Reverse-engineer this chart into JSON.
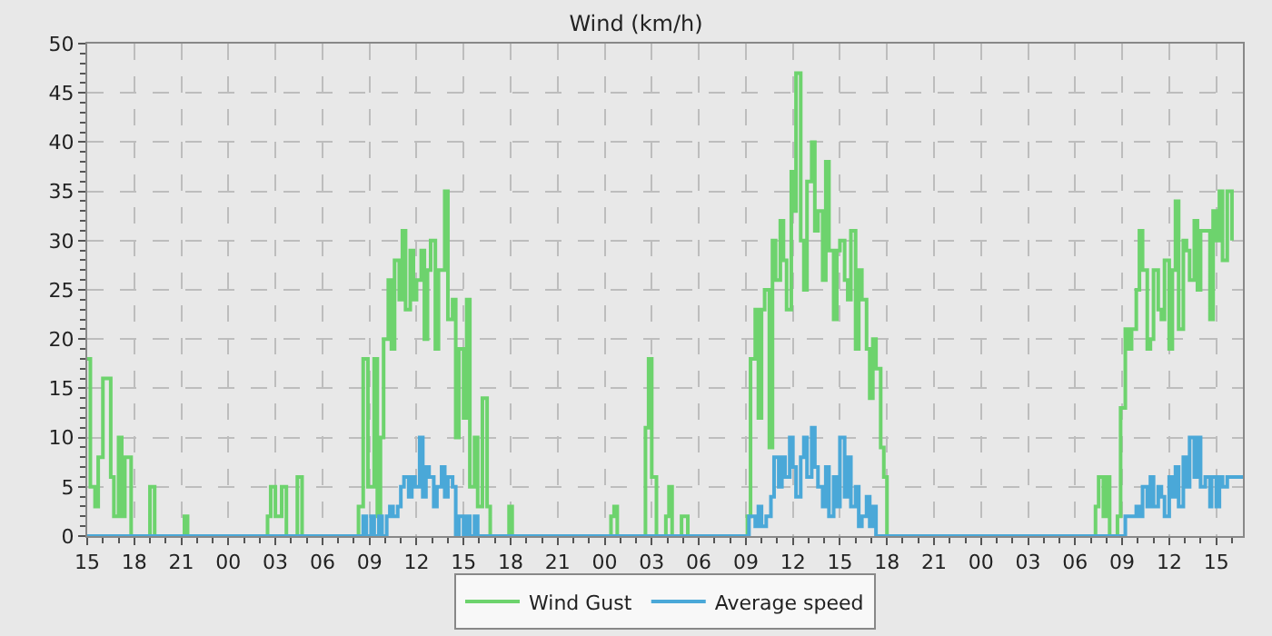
{
  "chart_data": {
    "type": "step",
    "title": "Wind (km/h)",
    "xlim": [
      "2000-01-01T15:00",
      "2000-01-04T16:42"
    ],
    "xticks": [
      {
        "value": "2000-01-01T15:00",
        "label": "15"
      },
      {
        "value": "2000-01-01T18:00",
        "label": "18"
      },
      {
        "value": "2000-01-01T21:00",
        "label": "21"
      },
      {
        "value": "2000-01-02T00:00",
        "label": "00"
      },
      {
        "value": "2000-01-02T03:00",
        "label": "03"
      },
      {
        "value": "2000-01-02T06:00",
        "label": "06"
      },
      {
        "value": "2000-01-02T09:00",
        "label": "09"
      },
      {
        "value": "2000-01-02T12:00",
        "label": "12"
      },
      {
        "value": "2000-01-02T15:00",
        "label": "15"
      },
      {
        "value": "2000-01-02T18:00",
        "label": "18"
      },
      {
        "value": "2000-01-02T21:00",
        "label": "21"
      },
      {
        "value": "2000-01-03T00:00",
        "label": "00"
      },
      {
        "value": "2000-01-03T03:00",
        "label": "03"
      },
      {
        "value": "2000-01-03T06:00",
        "label": "06"
      },
      {
        "value": "2000-01-03T09:00",
        "label": "09"
      },
      {
        "value": "2000-01-03T12:00",
        "label": "12"
      },
      {
        "value": "2000-01-03T15:00",
        "label": "15"
      },
      {
        "value": "2000-01-03T18:00",
        "label": "18"
      },
      {
        "value": "2000-01-03T21:00",
        "label": "21"
      },
      {
        "value": "2000-01-04T00:00",
        "label": "00"
      },
      {
        "value": "2000-01-04T03:00",
        "label": "03"
      },
      {
        "value": "2000-01-04T06:00",
        "label": "06"
      },
      {
        "value": "2000-01-04T09:00",
        "label": "09"
      },
      {
        "value": "2000-01-04T12:00",
        "label": "12"
      },
      {
        "value": "2000-01-04T15:00",
        "label": "15"
      }
    ],
    "ylim": [
      0,
      50
    ],
    "yticks": [
      0,
      5,
      10,
      15,
      20,
      25,
      30,
      35,
      40,
      45,
      50
    ],
    "grid": true,
    "legend": "bottom",
    "line_style": "solid",
    "series": [
      {
        "name": "Wind Gust",
        "color": "#6dd36d",
        "x": [
          "2000-01-01T15:00",
          "2000-01-01T15:12",
          "2000-01-01T15:30",
          "2000-01-01T15:42",
          "2000-01-01T16:00",
          "2000-01-01T16:30",
          "2000-01-01T16:42",
          "2000-01-01T17:00",
          "2000-01-01T17:12",
          "2000-01-01T17:24",
          "2000-01-01T17:48",
          "2000-01-01T19:00",
          "2000-01-01T19:18",
          "2000-01-01T21:12",
          "2000-01-01T21:24",
          "2000-01-02T02:30",
          "2000-01-02T02:42",
          "2000-01-02T03:00",
          "2000-01-02T03:24",
          "2000-01-02T03:42",
          "2000-01-02T04:24",
          "2000-01-02T04:42",
          "2000-01-02T08:18",
          "2000-01-02T08:36",
          "2000-01-02T08:54",
          "2000-01-02T09:18",
          "2000-01-02T09:30",
          "2000-01-02T09:42",
          "2000-01-02T09:54",
          "2000-01-02T10:12",
          "2000-01-02T10:24",
          "2000-01-02T10:36",
          "2000-01-02T10:54",
          "2000-01-02T11:06",
          "2000-01-02T11:18",
          "2000-01-02T11:36",
          "2000-01-02T11:48",
          "2000-01-02T12:00",
          "2000-01-02T12:18",
          "2000-01-02T12:30",
          "2000-01-02T12:42",
          "2000-01-02T12:54",
          "2000-01-02T13:12",
          "2000-01-02T13:24",
          "2000-01-02T13:48",
          "2000-01-02T14:00",
          "2000-01-02T14:18",
          "2000-01-02T14:30",
          "2000-01-02T14:42",
          "2000-01-02T15:00",
          "2000-01-02T15:12",
          "2000-01-02T15:24",
          "2000-01-02T15:42",
          "2000-01-02T15:54",
          "2000-01-02T16:12",
          "2000-01-02T16:30",
          "2000-01-02T16:42",
          "2000-01-02T17:54",
          "2000-01-02T18:06",
          "2000-01-03T00:24",
          "2000-01-03T00:36",
          "2000-01-03T00:48",
          "2000-01-03T02:36",
          "2000-01-03T02:48",
          "2000-01-03T03:00",
          "2000-01-03T03:18",
          "2000-01-03T03:54",
          "2000-01-03T04:06",
          "2000-01-03T04:18",
          "2000-01-03T04:54",
          "2000-01-03T05:18",
          "2000-01-03T09:06",
          "2000-01-03T09:18",
          "2000-01-03T09:36",
          "2000-01-03T09:48",
          "2000-01-03T10:00",
          "2000-01-03T10:12",
          "2000-01-03T10:30",
          "2000-01-03T10:42",
          "2000-01-03T10:54",
          "2000-01-03T11:12",
          "2000-01-03T11:24",
          "2000-01-03T11:36",
          "2000-01-03T11:54",
          "2000-01-03T12:06",
          "2000-01-03T12:12",
          "2000-01-03T12:30",
          "2000-01-03T12:42",
          "2000-01-03T12:54",
          "2000-01-03T13:12",
          "2000-01-03T13:24",
          "2000-01-03T13:36",
          "2000-01-03T13:54",
          "2000-01-03T14:06",
          "2000-01-03T14:18",
          "2000-01-03T14:36",
          "2000-01-03T14:48",
          "2000-01-03T15:00",
          "2000-01-03T15:18",
          "2000-01-03T15:30",
          "2000-01-03T15:42",
          "2000-01-03T16:00",
          "2000-01-03T16:12",
          "2000-01-03T16:24",
          "2000-01-03T16:42",
          "2000-01-03T16:54",
          "2000-01-03T17:06",
          "2000-01-03T17:18",
          "2000-01-03T17:36",
          "2000-01-03T17:48",
          "2000-01-03T18:00",
          "2000-01-04T07:18",
          "2000-01-04T07:30",
          "2000-01-04T07:48",
          "2000-01-04T08:00",
          "2000-01-04T08:12",
          "2000-01-04T08:42",
          "2000-01-04T08:54",
          "2000-01-04T09:12",
          "2000-01-04T09:24",
          "2000-01-04T09:36",
          "2000-01-04T09:54",
          "2000-01-04T10:06",
          "2000-01-04T10:18",
          "2000-01-04T10:36",
          "2000-01-04T10:48",
          "2000-01-04T11:00",
          "2000-01-04T11:18",
          "2000-01-04T11:30",
          "2000-01-04T11:42",
          "2000-01-04T12:00",
          "2000-01-04T12:12",
          "2000-01-04T12:24",
          "2000-01-04T12:36",
          "2000-01-04T12:54",
          "2000-01-04T13:06",
          "2000-01-04T13:18",
          "2000-01-04T13:36",
          "2000-01-04T13:48",
          "2000-01-04T14:00",
          "2000-01-04T14:18",
          "2000-01-04T14:36",
          "2000-01-04T14:48",
          "2000-01-04T15:00",
          "2000-01-04T15:12",
          "2000-01-04T15:24",
          "2000-01-04T15:42",
          "2000-01-04T16:00"
        ],
        "values": [
          18,
          5,
          3,
          8,
          16,
          6,
          2,
          10,
          2,
          8,
          0,
          5,
          0,
          2,
          0,
          2,
          5,
          2,
          5,
          0,
          6,
          0,
          3,
          18,
          5,
          18,
          2,
          10,
          20,
          26,
          19,
          28,
          24,
          31,
          23,
          29,
          24,
          26,
          29,
          20,
          27,
          30,
          19,
          27,
          35,
          22,
          24,
          10,
          19,
          12,
          24,
          5,
          10,
          3,
          14,
          3,
          0,
          3,
          0,
          2,
          3,
          0,
          11,
          18,
          6,
          0,
          2,
          5,
          0,
          2,
          0,
          2,
          18,
          23,
          12,
          23,
          25,
          9,
          30,
          26,
          32,
          28,
          23,
          37,
          33,
          47,
          30,
          25,
          36,
          40,
          31,
          33,
          26,
          38,
          29,
          22,
          29,
          30,
          26,
          24,
          31,
          19,
          27,
          24,
          19,
          14,
          20,
          17,
          9,
          6,
          0,
          3,
          6,
          2,
          6,
          0,
          2,
          13,
          21,
          19,
          21,
          25,
          31,
          27,
          19,
          20,
          27,
          23,
          22,
          28,
          19,
          27,
          34,
          21,
          30,
          29,
          26,
          32,
          25,
          31,
          31,
          22,
          33,
          30,
          35,
          28,
          35,
          30
        ]
      },
      {
        "name": "Average speed",
        "color": "#4aa8d8",
        "x": [
          "2000-01-01T15:00",
          "2000-01-02T08:36",
          "2000-01-02T08:48",
          "2000-01-02T09:06",
          "2000-01-02T09:18",
          "2000-01-02T09:36",
          "2000-01-02T09:48",
          "2000-01-02T10:06",
          "2000-01-02T10:18",
          "2000-01-02T10:30",
          "2000-01-02T10:48",
          "2000-01-02T11:00",
          "2000-01-02T11:12",
          "2000-01-02T11:30",
          "2000-01-02T11:42",
          "2000-01-02T11:54",
          "2000-01-02T12:12",
          "2000-01-02T12:24",
          "2000-01-02T12:36",
          "2000-01-02T12:48",
          "2000-01-02T13:06",
          "2000-01-02T13:18",
          "2000-01-02T13:36",
          "2000-01-02T13:48",
          "2000-01-02T14:00",
          "2000-01-02T14:18",
          "2000-01-02T14:30",
          "2000-01-02T14:42",
          "2000-01-02T15:00",
          "2000-01-02T15:12",
          "2000-01-02T15:24",
          "2000-01-02T15:42",
          "2000-01-02T15:54",
          "2000-01-03T09:12",
          "2000-01-03T09:36",
          "2000-01-03T09:48",
          "2000-01-03T10:00",
          "2000-01-03T10:18",
          "2000-01-03T10:36",
          "2000-01-03T10:48",
          "2000-01-03T11:06",
          "2000-01-03T11:18",
          "2000-01-03T11:30",
          "2000-01-03T11:48",
          "2000-01-03T12:00",
          "2000-01-03T12:12",
          "2000-01-03T12:30",
          "2000-01-03T12:42",
          "2000-01-03T12:54",
          "2000-01-03T13:12",
          "2000-01-03T13:24",
          "2000-01-03T13:36",
          "2000-01-03T13:54",
          "2000-01-03T14:06",
          "2000-01-03T14:18",
          "2000-01-03T14:36",
          "2000-01-03T14:48",
          "2000-01-03T15:00",
          "2000-01-03T15:18",
          "2000-01-03T15:30",
          "2000-01-03T15:42",
          "2000-01-03T16:00",
          "2000-01-03T16:12",
          "2000-01-03T16:24",
          "2000-01-03T16:42",
          "2000-01-03T16:54",
          "2000-01-03T17:06",
          "2000-01-03T17:18",
          "2000-01-04T09:12",
          "2000-01-04T09:54",
          "2000-01-04T10:06",
          "2000-01-04T10:18",
          "2000-01-04T10:36",
          "2000-01-04T10:48",
          "2000-01-04T11:00",
          "2000-01-04T11:18",
          "2000-01-04T11:30",
          "2000-01-04T11:42",
          "2000-01-04T12:00",
          "2000-01-04T12:12",
          "2000-01-04T12:24",
          "2000-01-04T12:36",
          "2000-01-04T12:54",
          "2000-01-04T13:06",
          "2000-01-04T13:18",
          "2000-01-04T13:36",
          "2000-01-04T13:48",
          "2000-01-04T14:00",
          "2000-01-04T14:18",
          "2000-01-04T14:36",
          "2000-01-04T14:42",
          "2000-01-04T15:00",
          "2000-01-04T15:12",
          "2000-01-04T15:24",
          "2000-01-04T15:42",
          "2000-01-04T16:00",
          "2000-01-04T16:42"
        ],
        "values": [
          0,
          2,
          0,
          2,
          0,
          2,
          0,
          2,
          3,
          2,
          3,
          5,
          6,
          4,
          6,
          5,
          10,
          4,
          7,
          6,
          3,
          5,
          7,
          4,
          6,
          5,
          0,
          2,
          0,
          2,
          0,
          2,
          0,
          2,
          1,
          3,
          1,
          2,
          4,
          8,
          5,
          8,
          6,
          10,
          7,
          4,
          8,
          10,
          6,
          11,
          7,
          5,
          3,
          7,
          2,
          6,
          3,
          10,
          4,
          8,
          3,
          5,
          1,
          2,
          4,
          1,
          3,
          0,
          2,
          3,
          2,
          5,
          3,
          6,
          3,
          5,
          4,
          2,
          6,
          4,
          7,
          3,
          8,
          5,
          10,
          6,
          10,
          5,
          6,
          3,
          6,
          3,
          6,
          5,
          6,
          6,
          6
        ]
      }
    ]
  }
}
